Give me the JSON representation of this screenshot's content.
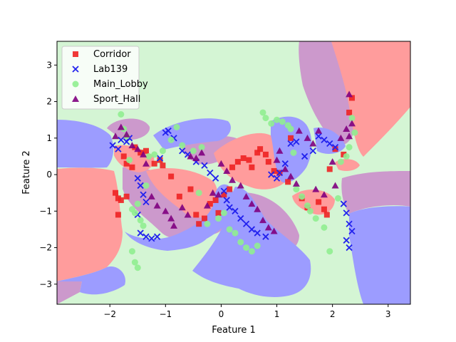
{
  "chart_data": {
    "type": "scatter",
    "title": "",
    "xlabel": "Feature 1",
    "ylabel": "Feature 2",
    "xlim": [
      -2.95,
      3.4
    ],
    "ylim": [
      -3.55,
      3.65
    ],
    "xticks": [
      -2,
      -1,
      0,
      1,
      2,
      3
    ],
    "yticks": [
      -3,
      -2,
      -1,
      0,
      1,
      2,
      3
    ],
    "grid": false,
    "legend_position": "top-left",
    "background": "decision regions of a classifier (one color per class)",
    "series": [
      {
        "name": "Corridor",
        "marker": "square",
        "color": "#ee2222",
        "region_color": "#ff9c9c",
        "points": [
          [
            -1.9,
            -0.5
          ],
          [
            -1.85,
            -0.65
          ],
          [
            -1.8,
            -0.7
          ],
          [
            -1.7,
            -0.6
          ],
          [
            -1.85,
            -1.1
          ],
          [
            -1.75,
            0.5
          ],
          [
            -1.7,
            0.3
          ],
          [
            -1.6,
            0.2
          ],
          [
            -1.55,
            0.75
          ],
          [
            -1.45,
            0.6
          ],
          [
            -1.35,
            0.65
          ],
          [
            -1.2,
            0.3
          ],
          [
            -1.1,
            0.4
          ],
          [
            -1.05,
            0.25
          ],
          [
            -0.9,
            -0.05
          ],
          [
            -0.75,
            -0.6
          ],
          [
            -0.55,
            -0.4
          ],
          [
            -0.45,
            -1.1
          ],
          [
            -0.4,
            -1.35
          ],
          [
            -0.3,
            -1.2
          ],
          [
            -0.2,
            -0.8
          ],
          [
            -0.1,
            -0.7
          ],
          [
            -0.05,
            -1.05
          ],
          [
            0.05,
            -0.55
          ],
          [
            0.15,
            -0.4
          ],
          [
            0.2,
            0.2
          ],
          [
            0.3,
            0.35
          ],
          [
            0.4,
            0.45
          ],
          [
            0.5,
            0.4
          ],
          [
            0.55,
            0.2
          ],
          [
            0.65,
            0.6
          ],
          [
            0.7,
            0.7
          ],
          [
            0.8,
            0.55
          ],
          [
            0.85,
            0.35
          ],
          [
            0.95,
            0.1
          ],
          [
            1.05,
            0.05
          ],
          [
            1.2,
            -0.2
          ],
          [
            1.25,
            1.0
          ],
          [
            1.45,
            -0.65
          ],
          [
            1.55,
            -0.9
          ],
          [
            1.75,
            -0.75
          ],
          [
            1.85,
            -0.95
          ],
          [
            1.9,
            -1.1
          ],
          [
            1.95,
            0.15
          ],
          [
            2.05,
            0.7
          ],
          [
            2.2,
            0.55
          ],
          [
            2.3,
            1.7
          ],
          [
            2.35,
            2.1
          ]
        ]
      },
      {
        "name": "Lab139",
        "marker": "x",
        "color": "#2222ee",
        "region_color": "#9c9cff",
        "points": [
          [
            -1.95,
            0.8
          ],
          [
            -1.85,
            0.7
          ],
          [
            -1.8,
            0.95
          ],
          [
            -1.7,
            0.9
          ],
          [
            -1.65,
            1.0
          ],
          [
            -1.5,
            -0.1
          ],
          [
            -1.45,
            -0.3
          ],
          [
            -1.4,
            -0.55
          ],
          [
            -1.35,
            -0.75
          ],
          [
            -1.5,
            -1.1
          ],
          [
            -1.45,
            -1.6
          ],
          [
            -1.35,
            -1.7
          ],
          [
            -1.25,
            -1.75
          ],
          [
            -1.15,
            -1.7
          ],
          [
            -1.1,
            0.45
          ],
          [
            -1.0,
            1.15
          ],
          [
            -0.95,
            1.2
          ],
          [
            -0.85,
            1.0
          ],
          [
            -0.7,
            0.65
          ],
          [
            -0.6,
            0.55
          ],
          [
            -0.45,
            0.35
          ],
          [
            -0.3,
            0.25
          ],
          [
            -0.2,
            0.05
          ],
          [
            -0.1,
            -0.1
          ],
          [
            0.05,
            -0.45
          ],
          [
            0.1,
            -0.7
          ],
          [
            0.15,
            -0.9
          ],
          [
            0.25,
            -1.0
          ],
          [
            0.35,
            -1.2
          ],
          [
            0.45,
            -1.35
          ],
          [
            0.55,
            -1.5
          ],
          [
            0.65,
            -1.6
          ],
          [
            0.8,
            -1.7
          ],
          [
            0.9,
            0.0
          ],
          [
            1.0,
            -0.1
          ],
          [
            1.05,
            0.05
          ],
          [
            1.15,
            0.3
          ],
          [
            1.25,
            0.85
          ],
          [
            1.35,
            0.9
          ],
          [
            1.5,
            0.5
          ],
          [
            1.65,
            0.65
          ],
          [
            1.75,
            1.05
          ],
          [
            1.85,
            0.95
          ],
          [
            1.95,
            0.85
          ],
          [
            2.05,
            0.75
          ],
          [
            2.2,
            -0.8
          ],
          [
            2.25,
            -1.05
          ],
          [
            2.3,
            -1.35
          ],
          [
            2.35,
            -1.55
          ],
          [
            2.25,
            -1.8
          ],
          [
            2.3,
            -2.0
          ]
        ]
      },
      {
        "name": "Main_Lobby",
        "marker": "circle",
        "color": "#90ee90",
        "region_color": "#d4f5d4",
        "points": [
          [
            -1.8,
            1.65
          ],
          [
            -1.75,
            1.25
          ],
          [
            -1.7,
            1.05
          ],
          [
            -1.65,
            0.4
          ],
          [
            -1.6,
            -0.95
          ],
          [
            -1.5,
            -0.8
          ],
          [
            -1.45,
            -1.25
          ],
          [
            -1.4,
            -1.4
          ],
          [
            -1.55,
            -1.05
          ],
          [
            -1.6,
            -2.1
          ],
          [
            -1.55,
            -2.4
          ],
          [
            -1.5,
            -2.55
          ],
          [
            -1.35,
            -0.3
          ],
          [
            -1.3,
            0.5
          ],
          [
            -1.2,
            0.55
          ],
          [
            -1.05,
            0.65
          ],
          [
            -0.9,
            0.95
          ],
          [
            -0.8,
            1.3
          ],
          [
            -0.7,
            0.8
          ],
          [
            -0.5,
            0.65
          ],
          [
            -0.4,
            -0.5
          ],
          [
            -0.35,
            0.75
          ],
          [
            -0.25,
            -1.35
          ],
          [
            -0.05,
            -1.2
          ],
          [
            0.05,
            -1.05
          ],
          [
            0.15,
            -1.5
          ],
          [
            0.25,
            -1.6
          ],
          [
            0.35,
            -1.85
          ],
          [
            0.45,
            -2.0
          ],
          [
            0.55,
            -2.1
          ],
          [
            0.65,
            -1.95
          ],
          [
            0.75,
            1.7
          ],
          [
            0.8,
            1.55
          ],
          [
            0.9,
            1.4
          ],
          [
            1.0,
            1.5
          ],
          [
            1.1,
            1.45
          ],
          [
            1.2,
            1.35
          ],
          [
            1.25,
            1.25
          ],
          [
            1.3,
            0.6
          ],
          [
            1.35,
            -0.4
          ],
          [
            1.45,
            -0.6
          ],
          [
            1.55,
            -0.85
          ],
          [
            1.6,
            -1.0
          ],
          [
            1.7,
            -1.2
          ],
          [
            1.85,
            -1.45
          ],
          [
            1.95,
            -2.1
          ],
          [
            2.1,
            -0.65
          ],
          [
            2.15,
            0.35
          ],
          [
            2.25,
            0.5
          ],
          [
            2.3,
            0.75
          ],
          [
            2.35,
            1.55
          ],
          [
            2.4,
            1.15
          ]
        ]
      },
      {
        "name": "Sport_Hall",
        "marker": "triangle",
        "color": "#800080",
        "region_color": "#cc99cc",
        "points": [
          [
            -1.9,
            1.05
          ],
          [
            -1.8,
            1.3
          ],
          [
            -1.7,
            1.1
          ],
          [
            -1.6,
            0.8
          ],
          [
            -1.5,
            0.7
          ],
          [
            -1.4,
            0.55
          ],
          [
            -1.35,
            0.3
          ],
          [
            -1.25,
            -0.6
          ],
          [
            -1.15,
            -0.85
          ],
          [
            -1.0,
            -1.0
          ],
          [
            -0.9,
            -1.2
          ],
          [
            -0.85,
            -1.4
          ],
          [
            -0.7,
            -0.9
          ],
          [
            -0.6,
            -1.1
          ],
          [
            -0.55,
            0.5
          ],
          [
            -0.45,
            0.45
          ],
          [
            -0.35,
            0.6
          ],
          [
            -0.25,
            -0.85
          ],
          [
            -0.15,
            -0.5
          ],
          [
            -0.05,
            -0.55
          ],
          [
            0.0,
            0.3
          ],
          [
            0.1,
            0.1
          ],
          [
            0.2,
            -0.15
          ],
          [
            0.35,
            -0.3
          ],
          [
            0.45,
            -0.6
          ],
          [
            0.55,
            -0.8
          ],
          [
            0.65,
            -0.95
          ],
          [
            0.75,
            -1.25
          ],
          [
            0.85,
            -1.45
          ],
          [
            0.95,
            -1.55
          ],
          [
            1.0,
            0.4
          ],
          [
            1.05,
            0.65
          ],
          [
            1.15,
            0.15
          ],
          [
            1.25,
            -0.05
          ],
          [
            1.35,
            -0.25
          ],
          [
            1.4,
            1.2
          ],
          [
            1.55,
            1.0
          ],
          [
            1.65,
            0.85
          ],
          [
            1.7,
            -0.4
          ],
          [
            1.75,
            1.2
          ],
          [
            1.85,
            -0.55
          ],
          [
            2.0,
            0.35
          ],
          [
            2.05,
            -0.3
          ],
          [
            2.15,
            1.0
          ],
          [
            2.25,
            1.25
          ],
          [
            2.3,
            1.05
          ],
          [
            2.35,
            1.4
          ],
          [
            2.3,
            2.2
          ]
        ]
      }
    ]
  }
}
